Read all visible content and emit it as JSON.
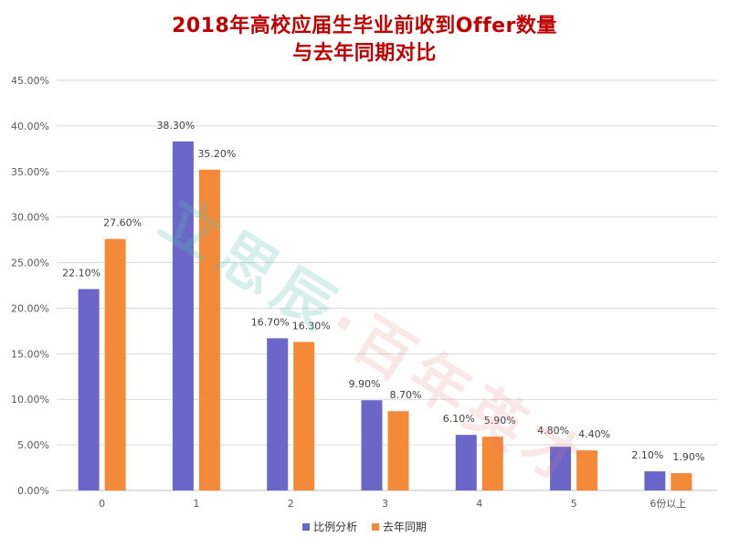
{
  "title": {
    "line1": "2018年高校应届生毕业前收到Offer数量",
    "line2": "与去年同期对比"
  },
  "watermark": {
    "left": "立思辰",
    "dot": "·",
    "right": "百年英才"
  },
  "colors": {
    "series1": "#6a67c9",
    "series2": "#f4893a",
    "title": "#c00000",
    "grid": "#d9d9d9"
  },
  "chart_data": {
    "type": "bar",
    "categories": [
      "0",
      "1",
      "2",
      "3",
      "4",
      "5",
      "6份以上"
    ],
    "series": [
      {
        "name": "比例分析",
        "values": [
          22.1,
          38.3,
          16.7,
          9.9,
          6.1,
          4.8,
          2.1
        ],
        "labels": [
          "22.10%",
          "38.30%",
          "16.70%",
          "9.90%",
          "6.10%",
          "4.80%",
          "2.10%"
        ]
      },
      {
        "name": "去年同期",
        "values": [
          27.6,
          35.2,
          16.3,
          8.7,
          5.9,
          4.4,
          1.9
        ],
        "labels": [
          "27.60%",
          "35.20%",
          "16.30%",
          "8.70%",
          "5.90%",
          "4.40%",
          "1.90%"
        ]
      }
    ],
    "ylim": [
      0,
      45
    ],
    "yticks": [
      "0.00%",
      "5.00%",
      "10.00%",
      "15.00%",
      "20.00%",
      "25.00%",
      "30.00%",
      "35.00%",
      "40.00%",
      "45.00%"
    ],
    "grid": true,
    "legend_position": "bottom"
  }
}
